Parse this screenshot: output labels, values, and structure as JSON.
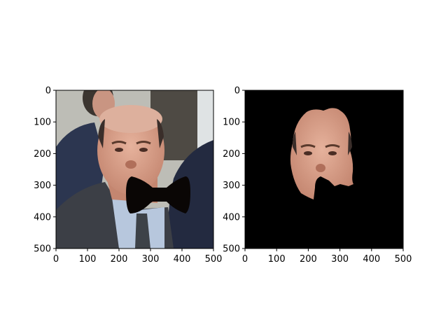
{
  "chart_data": [
    {
      "type": "image",
      "panel": "left",
      "content": "photo with black bow-tie-shaped mask over mouth/chin",
      "xlim": [
        0,
        500
      ],
      "ylim": [
        500,
        0
      ],
      "xticks": [
        0,
        100,
        200,
        300,
        400,
        500
      ],
      "yticks": [
        0,
        100,
        200,
        300,
        400,
        500
      ],
      "xtick_labels": [
        "0",
        "100",
        "200",
        "300",
        "400",
        "500"
      ],
      "ytick_labels": [
        "0",
        "100",
        "200",
        "300",
        "400",
        "500"
      ],
      "colors": {
        "background_left": "#bdbdb6",
        "background_right": "#dfe3e4",
        "door_panel": "#4e4a44",
        "suit_dark": "#2c3650",
        "suit_grey": "#3c3f46",
        "shirt": "#b7c7dd",
        "skin": "#d9a18c",
        "hair": "#3a2e2a",
        "mask": "#0a0605"
      }
    },
    {
      "type": "image",
      "panel": "right",
      "content": "segmented head region on black background",
      "xlim": [
        0,
        500
      ],
      "ylim": [
        500,
        0
      ],
      "xticks": [
        0,
        100,
        200,
        300,
        400,
        500
      ],
      "yticks": [
        0,
        100,
        200,
        300,
        400,
        500
      ],
      "xtick_labels": [
        "0",
        "100",
        "200",
        "300",
        "400",
        "500"
      ],
      "ytick_labels": [
        "0",
        "100",
        "200",
        "300",
        "400",
        "500"
      ],
      "colors": {
        "background": "#000000",
        "skin": "#d9a18c",
        "hair": "#3a2e2a"
      }
    }
  ]
}
